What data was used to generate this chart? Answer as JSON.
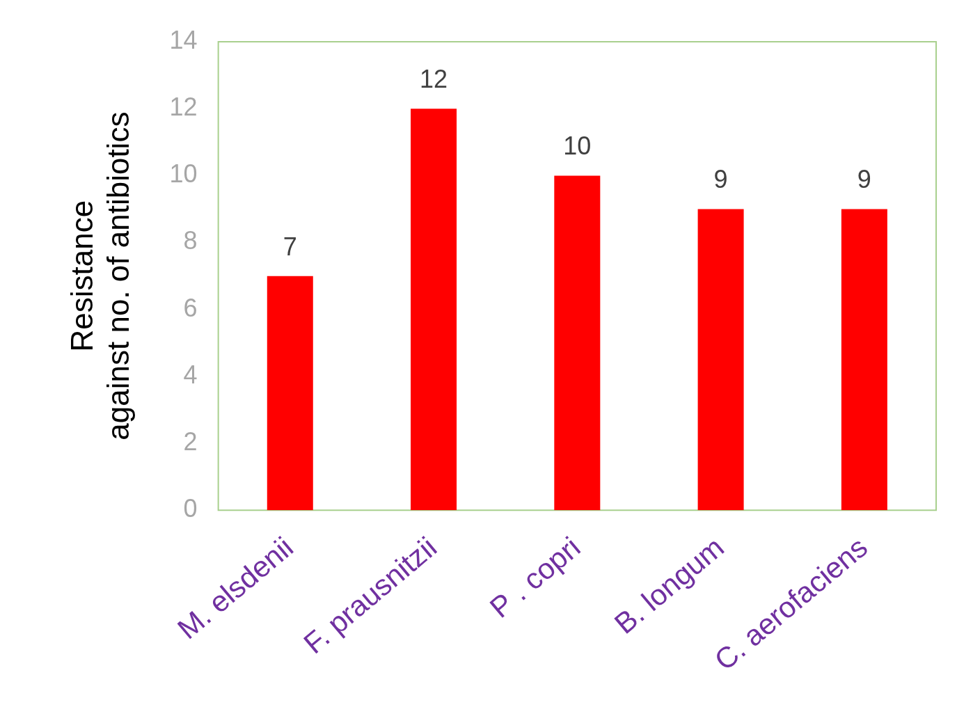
{
  "chart_data": {
    "type": "bar",
    "ylabel": "Resistance\nagainst no. of antibiotics",
    "categories": [
      "M. elsdenii",
      "F. prausnitzii",
      "P . copri",
      "B. longum",
      "C. aerofaciens"
    ],
    "values": [
      7,
      12,
      10,
      9,
      9
    ],
    "color": "#ff0000",
    "ylim": [
      0,
      14
    ],
    "yticks": [
      0,
      2,
      4,
      6,
      8,
      10,
      12,
      14
    ],
    "grid": false,
    "legend": false,
    "data_labels": true
  }
}
